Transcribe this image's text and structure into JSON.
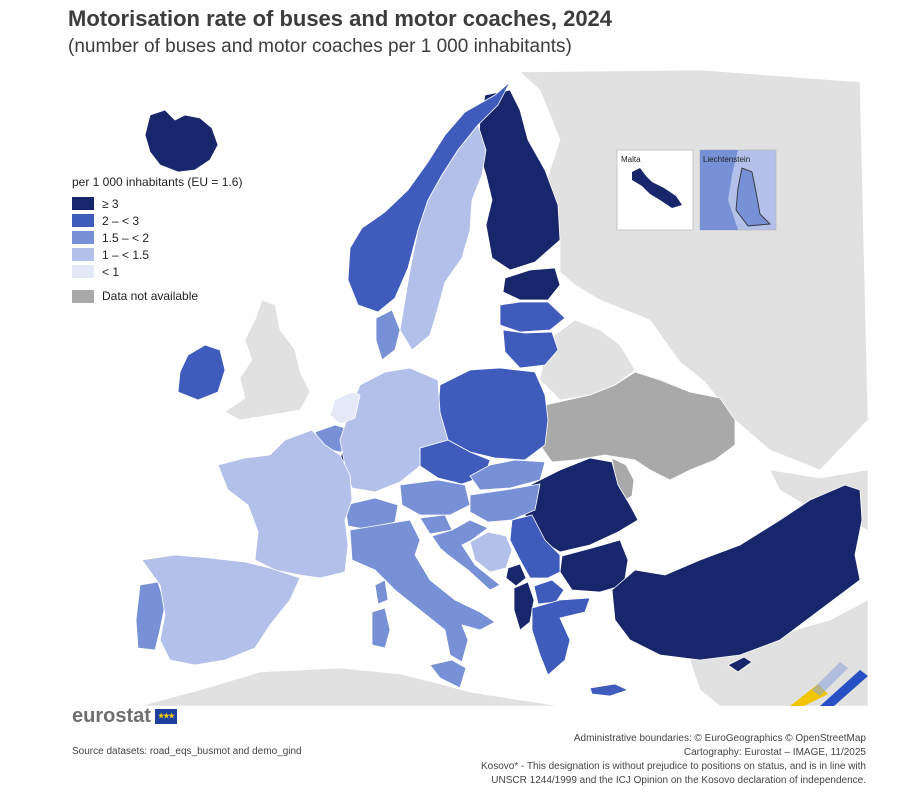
{
  "title": "Motorisation rate of buses and motor coaches, 2024",
  "subtitle": "(number of buses and motor coaches per 1 000 inhabitants)",
  "legend": {
    "title": "per 1 000 inhabitants (EU = 1.6)",
    "classes": [
      {
        "label": "≥ 3",
        "color": "#18266b"
      },
      {
        "label": "2 – < 3",
        "color": "#3f5cbd"
      },
      {
        "label": "1.5 – < 2",
        "color": "#7790d6"
      },
      {
        "label": "1 – < 1.5",
        "color": "#b3c0ea"
      },
      {
        "label": "< 1",
        "color": "#e4e9f8"
      }
    ],
    "na_label": "Data not available",
    "na_color": "#a9a9a9"
  },
  "insets": {
    "malta": "Malta",
    "liechtenstein": "Liechtenstein"
  },
  "logo": {
    "text": "eurostat",
    "flag_stars": "★★★"
  },
  "source": "Source datasets: road_eqs_busmot and demo_gind",
  "credits": [
    "Administrative boundaries: © EuroGeographics © OpenStreetMap",
    "Cartography: Eurostat – IMAGE, 11/2025",
    "Kosovo* - This designation is without prejudice to positions on status, and is in line with",
    "UNSCR 1244/1999 and the ICJ Opinion on the Kosovo declaration of independence."
  ],
  "chart_data": {
    "type": "choropleth",
    "colors": {
      "c5": "#18266b",
      "c4": "#3f5cbd",
      "c3": "#7790d6",
      "c2": "#b3c0ea",
      "c1": "#e4e9f8",
      "na": "#a9a9a9",
      "other": "#e1e1e1",
      "sea": "#ffffff"
    },
    "regions": [
      {
        "name": "Iceland",
        "class": "≥ 3"
      },
      {
        "name": "Finland",
        "class": "≥ 3"
      },
      {
        "name": "Estonia",
        "class": "≥ 3"
      },
      {
        "name": "Luxembourg",
        "class": "≥ 3"
      },
      {
        "name": "Romania",
        "class": "≥ 3"
      },
      {
        "name": "Bulgaria",
        "class": "≥ 3"
      },
      {
        "name": "Türkiye",
        "class": "≥ 3"
      },
      {
        "name": "Montenegro",
        "class": "≥ 3"
      },
      {
        "name": "Albania",
        "class": "≥ 3"
      },
      {
        "name": "Malta",
        "class": "≥ 3"
      },
      {
        "name": "Cyprus",
        "class": "≥ 3"
      },
      {
        "name": "Norway",
        "class": "2 – < 3"
      },
      {
        "name": "Ireland",
        "class": "2 – < 3"
      },
      {
        "name": "Poland",
        "class": "2 – < 3"
      },
      {
        "name": "Latvia",
        "class": "2 – < 3"
      },
      {
        "name": "Lithuania",
        "class": "2 – < 3"
      },
      {
        "name": "Czechia",
        "class": "2 – < 3"
      },
      {
        "name": "Serbia",
        "class": "2 – < 3"
      },
      {
        "name": "North Macedonia",
        "class": "2 – < 3"
      },
      {
        "name": "Greece",
        "class": "2 – < 3"
      },
      {
        "name": "Slovakia",
        "class": "1.5 – < 2"
      },
      {
        "name": "Hungary",
        "class": "1.5 – < 2"
      },
      {
        "name": "Austria",
        "class": "1.5 – < 2"
      },
      {
        "name": "Switzerland",
        "class": "1.5 – < 2"
      },
      {
        "name": "Liechtenstein",
        "class": "1.5 – < 2"
      },
      {
        "name": "Italy",
        "class": "1.5 – < 2"
      },
      {
        "name": "Slovenia",
        "class": "1.5 – < 2"
      },
      {
        "name": "Croatia",
        "class": "1.5 – < 2"
      },
      {
        "name": "Denmark",
        "class": "1.5 – < 2"
      },
      {
        "name": "Belgium",
        "class": "1.5 – < 2"
      },
      {
        "name": "Portugal",
        "class": "1.5 – < 2"
      },
      {
        "name": "Sweden",
        "class": "1 – < 1.5"
      },
      {
        "name": "Germany",
        "class": "1 – < 1.5"
      },
      {
        "name": "France",
        "class": "1 – < 1.5"
      },
      {
        "name": "Spain",
        "class": "1 – < 1.5"
      },
      {
        "name": "Bosnia and Herzegovina",
        "class": "1 – < 1.5"
      },
      {
        "name": "Netherlands",
        "class": "< 1"
      },
      {
        "name": "Ukraine",
        "class": "Data not available"
      },
      {
        "name": "Moldova",
        "class": "Data not available"
      }
    ]
  }
}
